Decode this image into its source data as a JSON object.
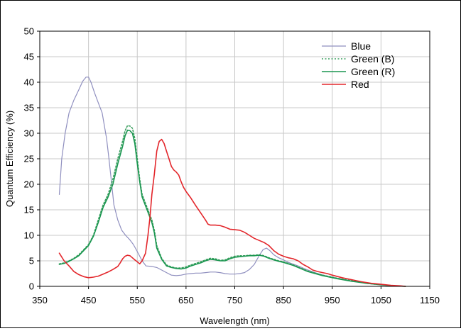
{
  "chart_data": {
    "type": "line",
    "title": "",
    "xlabel": "Wavelength (nm)",
    "ylabel": "Quantum Efficiency (%)",
    "xlim": [
      350,
      1150
    ],
    "ylim": [
      0,
      50
    ],
    "x_ticks": [
      350,
      450,
      550,
      650,
      750,
      850,
      950,
      1050,
      1150
    ],
    "y_ticks": [
      0,
      5,
      10,
      15,
      20,
      25,
      30,
      35,
      40,
      45,
      50
    ],
    "grid": true,
    "legend_position": "top-right",
    "series": [
      {
        "name": "Blue",
        "color": "#8f8fbf",
        "style": "solid",
        "points": [
          [
            390,
            18
          ],
          [
            395,
            25
          ],
          [
            402,
            30
          ],
          [
            410,
            34
          ],
          [
            420,
            36.5
          ],
          [
            430,
            38.5
          ],
          [
            438,
            40.2
          ],
          [
            445,
            41
          ],
          [
            450,
            41
          ],
          [
            455,
            40
          ],
          [
            462,
            38
          ],
          [
            470,
            36
          ],
          [
            478,
            34
          ],
          [
            487,
            29
          ],
          [
            492,
            25
          ],
          [
            497,
            20.5
          ],
          [
            502,
            16
          ],
          [
            510,
            13
          ],
          [
            518,
            11
          ],
          [
            526,
            10
          ],
          [
            534,
            9.2
          ],
          [
            542,
            8.2
          ],
          [
            550,
            6.8
          ],
          [
            560,
            5
          ],
          [
            568,
            4
          ],
          [
            580,
            3.9
          ],
          [
            590,
            3.7
          ],
          [
            600,
            3.2
          ],
          [
            610,
            2.7
          ],
          [
            620,
            2.2
          ],
          [
            630,
            2.1
          ],
          [
            640,
            2.2
          ],
          [
            650,
            2.4
          ],
          [
            660,
            2.5
          ],
          [
            670,
            2.6
          ],
          [
            680,
            2.6
          ],
          [
            690,
            2.7
          ],
          [
            700,
            2.8
          ],
          [
            710,
            2.8
          ],
          [
            720,
            2.7
          ],
          [
            730,
            2.5
          ],
          [
            740,
            2.4
          ],
          [
            750,
            2.4
          ],
          [
            760,
            2.5
          ],
          [
            770,
            2.7
          ],
          [
            780,
            3.3
          ],
          [
            790,
            4.3
          ],
          [
            800,
            6
          ],
          [
            808,
            7.2
          ],
          [
            815,
            7.5
          ],
          [
            822,
            7
          ],
          [
            830,
            6.2
          ],
          [
            840,
            5.6
          ],
          [
            850,
            5.2
          ],
          [
            860,
            4.7
          ],
          [
            880,
            4
          ],
          [
            900,
            3.2
          ],
          [
            920,
            2.5
          ],
          [
            940,
            2
          ],
          [
            960,
            1.6
          ],
          [
            980,
            1.2
          ],
          [
            1000,
            0.9
          ],
          [
            1020,
            0.6
          ],
          [
            1040,
            0.4
          ],
          [
            1060,
            0.2
          ],
          [
            1080,
            0.1
          ],
          [
            1100,
            0
          ]
        ]
      },
      {
        "name": "Green (B)",
        "color": "#3ca060",
        "style": "dotted",
        "points": [
          [
            390,
            4.4
          ],
          [
            400,
            4.6
          ],
          [
            410,
            5
          ],
          [
            420,
            5.5
          ],
          [
            430,
            6.2
          ],
          [
            440,
            7.2
          ],
          [
            450,
            8.2
          ],
          [
            460,
            10
          ],
          [
            470,
            13
          ],
          [
            480,
            16
          ],
          [
            490,
            18
          ],
          [
            500,
            21
          ],
          [
            510,
            25
          ],
          [
            520,
            28.5
          ],
          [
            525,
            30.5
          ],
          [
            530,
            31.5
          ],
          [
            535,
            31.4
          ],
          [
            540,
            31
          ],
          [
            545,
            29
          ],
          [
            550,
            25
          ],
          [
            555,
            21
          ],
          [
            560,
            18
          ],
          [
            570,
            15.5
          ],
          [
            580,
            13
          ],
          [
            585,
            11
          ],
          [
            590,
            8
          ],
          [
            600,
            5.5
          ],
          [
            610,
            4.2
          ],
          [
            620,
            3.8
          ],
          [
            630,
            3.6
          ],
          [
            640,
            3.6
          ],
          [
            650,
            3.8
          ],
          [
            660,
            4.2
          ],
          [
            670,
            4.5
          ],
          [
            680,
            4.8
          ],
          [
            690,
            5.2
          ],
          [
            700,
            5.5
          ],
          [
            710,
            5.4
          ],
          [
            720,
            5.1
          ],
          [
            730,
            5.2
          ],
          [
            740,
            5.6
          ],
          [
            750,
            5.9
          ],
          [
            760,
            6
          ],
          [
            770,
            6
          ],
          [
            780,
            6.1
          ],
          [
            790,
            6.1
          ],
          [
            800,
            6.2
          ],
          [
            810,
            6
          ],
          [
            820,
            5.6
          ],
          [
            830,
            5.3
          ],
          [
            840,
            5
          ],
          [
            850,
            4.8
          ],
          [
            870,
            4.2
          ],
          [
            900,
            3
          ],
          [
            930,
            2.2
          ],
          [
            960,
            1.6
          ],
          [
            990,
            1.1
          ],
          [
            1020,
            0.6
          ],
          [
            1050,
            0.3
          ],
          [
            1080,
            0.1
          ],
          [
            1100,
            0
          ]
        ]
      },
      {
        "name": "Green (R)",
        "color": "#1a9650",
        "style": "solid",
        "points": [
          [
            390,
            4.3
          ],
          [
            400,
            4.5
          ],
          [
            410,
            4.9
          ],
          [
            420,
            5.4
          ],
          [
            430,
            6
          ],
          [
            440,
            7
          ],
          [
            450,
            8
          ],
          [
            460,
            9.8
          ],
          [
            470,
            12.5
          ],
          [
            480,
            15.5
          ],
          [
            490,
            17.5
          ],
          [
            500,
            20
          ],
          [
            510,
            24
          ],
          [
            520,
            27.5
          ],
          [
            525,
            29.5
          ],
          [
            530,
            30.6
          ],
          [
            535,
            30.5
          ],
          [
            540,
            30
          ],
          [
            545,
            28
          ],
          [
            550,
            24
          ],
          [
            555,
            20.5
          ],
          [
            560,
            17.5
          ],
          [
            570,
            15
          ],
          [
            580,
            12.5
          ],
          [
            585,
            10.5
          ],
          [
            590,
            7.5
          ],
          [
            600,
            5.3
          ],
          [
            610,
            4
          ],
          [
            620,
            3.7
          ],
          [
            630,
            3.5
          ],
          [
            640,
            3.4
          ],
          [
            650,
            3.6
          ],
          [
            660,
            4
          ],
          [
            670,
            4.3
          ],
          [
            680,
            4.6
          ],
          [
            690,
            5
          ],
          [
            700,
            5.3
          ],
          [
            710,
            5.2
          ],
          [
            720,
            5
          ],
          [
            730,
            5
          ],
          [
            740,
            5.4
          ],
          [
            750,
            5.7
          ],
          [
            760,
            5.8
          ],
          [
            770,
            5.9
          ],
          [
            780,
            6
          ],
          [
            790,
            6
          ],
          [
            800,
            6.1
          ],
          [
            810,
            5.9
          ],
          [
            820,
            5.5
          ],
          [
            830,
            5.2
          ],
          [
            840,
            4.9
          ],
          [
            850,
            4.7
          ],
          [
            870,
            4.1
          ],
          [
            900,
            2.9
          ],
          [
            930,
            2.1
          ],
          [
            960,
            1.5
          ],
          [
            990,
            1
          ],
          [
            1020,
            0.6
          ],
          [
            1050,
            0.3
          ],
          [
            1080,
            0.1
          ],
          [
            1100,
            0
          ]
        ]
      },
      {
        "name": "Red",
        "color": "#e3262b",
        "style": "solid",
        "points": [
          [
            390,
            6.5
          ],
          [
            400,
            5
          ],
          [
            410,
            4
          ],
          [
            420,
            2.9
          ],
          [
            430,
            2.3
          ],
          [
            440,
            1.9
          ],
          [
            450,
            1.7
          ],
          [
            460,
            1.8
          ],
          [
            470,
            2
          ],
          [
            480,
            2.4
          ],
          [
            490,
            2.8
          ],
          [
            500,
            3.3
          ],
          [
            510,
            3.9
          ],
          [
            515,
            4.6
          ],
          [
            520,
            5.4
          ],
          [
            525,
            5.9
          ],
          [
            530,
            6.1
          ],
          [
            535,
            6
          ],
          [
            540,
            5.6
          ],
          [
            545,
            5.2
          ],
          [
            550,
            4.8
          ],
          [
            555,
            4.4
          ],
          [
            560,
            5
          ],
          [
            567,
            6.5
          ],
          [
            572,
            10
          ],
          [
            576,
            13.5
          ],
          [
            580,
            18
          ],
          [
            585,
            22
          ],
          [
            590,
            26.5
          ],
          [
            595,
            28.4
          ],
          [
            600,
            28.8
          ],
          [
            605,
            28
          ],
          [
            610,
            26.5
          ],
          [
            615,
            25
          ],
          [
            620,
            23.5
          ],
          [
            625,
            22.8
          ],
          [
            630,
            22.4
          ],
          [
            635,
            21.8
          ],
          [
            640,
            20.5
          ],
          [
            645,
            19.4
          ],
          [
            650,
            18.6
          ],
          [
            660,
            17.3
          ],
          [
            670,
            15.8
          ],
          [
            680,
            14.4
          ],
          [
            690,
            13
          ],
          [
            695,
            12.2
          ],
          [
            700,
            12
          ],
          [
            710,
            12
          ],
          [
            720,
            11.9
          ],
          [
            730,
            11.6
          ],
          [
            740,
            11.2
          ],
          [
            750,
            11.1
          ],
          [
            760,
            11
          ],
          [
            770,
            10.6
          ],
          [
            780,
            10
          ],
          [
            790,
            9.4
          ],
          [
            800,
            9
          ],
          [
            810,
            8.6
          ],
          [
            820,
            8
          ],
          [
            830,
            7
          ],
          [
            840,
            6.3
          ],
          [
            850,
            5.9
          ],
          [
            860,
            5.6
          ],
          [
            870,
            5.4
          ],
          [
            880,
            5
          ],
          [
            890,
            4.3
          ],
          [
            900,
            3.8
          ],
          [
            910,
            3.2
          ],
          [
            920,
            2.9
          ],
          [
            930,
            2.7
          ],
          [
            940,
            2.5
          ],
          [
            950,
            2.2
          ],
          [
            970,
            1.7
          ],
          [
            990,
            1.3
          ],
          [
            1010,
            0.9
          ],
          [
            1030,
            0.6
          ],
          [
            1050,
            0.4
          ],
          [
            1070,
            0.2
          ],
          [
            1090,
            0.1
          ],
          [
            1100,
            0
          ]
        ]
      }
    ]
  }
}
